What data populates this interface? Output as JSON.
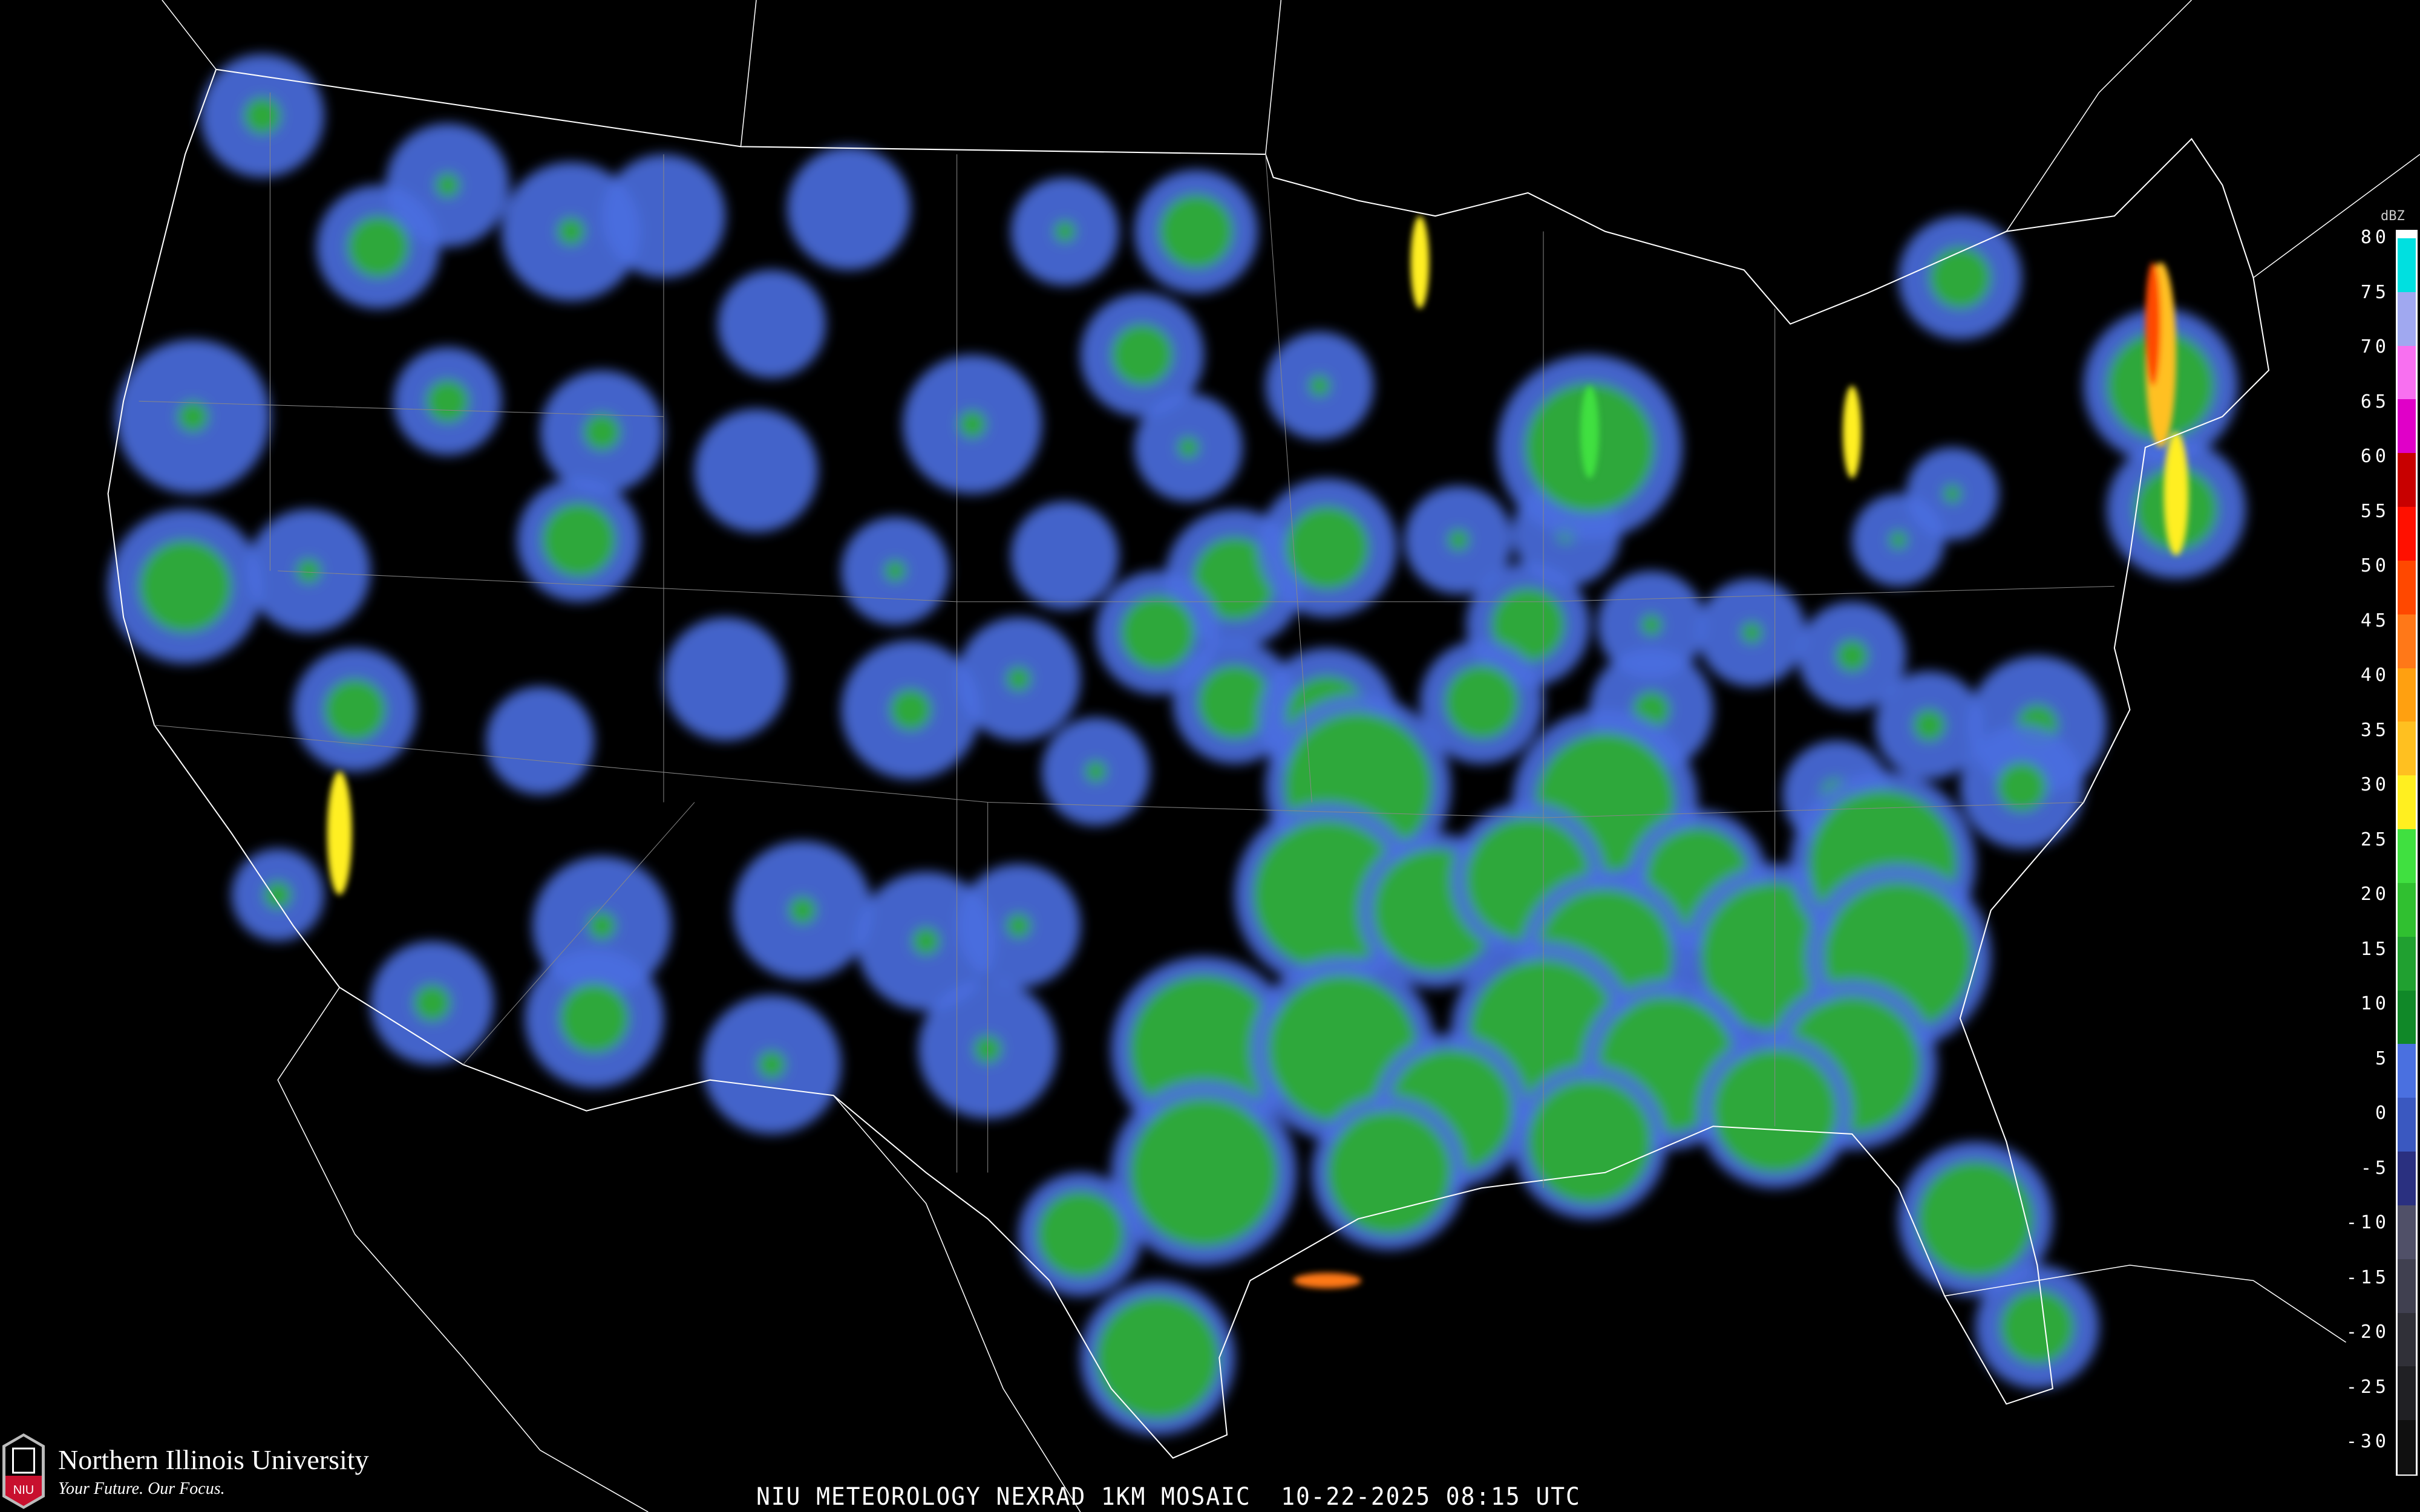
{
  "title": "NIU METEOROLOGY NEXRAD 1KM MOSAIC  10-22-2025 08:15 UTC",
  "logo": {
    "university": "Northern Illinois University",
    "tagline": "Your Future. Our Focus.",
    "shield_text": "NIU"
  },
  "legend": {
    "unit": "dBZ",
    "ticks": [
      "80",
      "75",
      "70",
      "65",
      "60",
      "55",
      "50",
      "45",
      "40",
      "35",
      "30",
      "25",
      "20",
      "15",
      "10",
      "5",
      "0",
      "-5",
      "-10",
      "-15",
      "-20",
      "-25",
      "-30"
    ],
    "colors": {
      "80": "#00e0e0",
      "75": "#a0a8f0",
      "70": "#f870f0",
      "65": "#e000c8",
      "60": "#c80000",
      "55": "#ff1000",
      "50": "#ff4800",
      "45": "#ff7818",
      "40": "#ffa010",
      "35": "#ffc020",
      "30": "#ffef20",
      "25": "#40e040",
      "20": "#30c030",
      "15": "#20a030",
      "10": "#108828",
      "5": "#4a70e0",
      "0": "#3a58c0",
      "-5": "#2a3080",
      "-10": "#505068",
      "-15": "#404050",
      "-20": "#303038",
      "-25": "#202024",
      "-30": "#101010"
    }
  },
  "colors": {
    "background": "#000000",
    "boundaries": "#ffffff",
    "light_echo": "#4a6ee0",
    "moderate_echo": "#2fa83a"
  }
}
